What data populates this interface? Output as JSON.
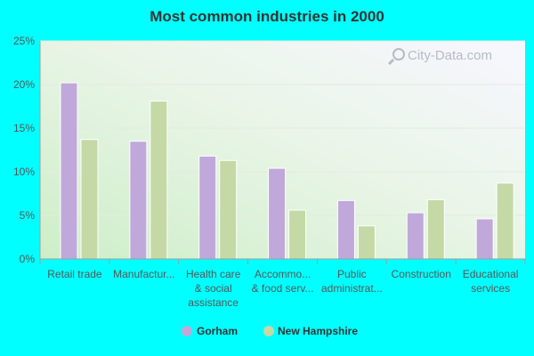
{
  "chart_data": {
    "type": "bar",
    "title": "Most common industries in 2000",
    "categories": [
      [
        "Retail trade"
      ],
      [
        "Manufactur..."
      ],
      [
        "Health care",
        "& social",
        "assistance"
      ],
      [
        "Accommo...",
        "& food serv..."
      ],
      [
        "Public",
        "administrat..."
      ],
      [
        "Construction"
      ],
      [
        "Educational",
        "services"
      ]
    ],
    "series": [
      {
        "name": "Gorham",
        "color": "#c0a8db",
        "values": [
          20.2,
          13.5,
          11.8,
          10.4,
          6.7,
          5.3,
          4.6
        ]
      },
      {
        "name": "New Hampshire",
        "color": "#c4d9a5",
        "values": [
          13.7,
          18.1,
          11.3,
          5.6,
          3.8,
          6.8,
          8.7
        ]
      }
    ],
    "y_ticks": [
      "0%",
      "5%",
      "10%",
      "15%",
      "20%",
      "25%"
    ],
    "ylim": [
      0,
      25
    ],
    "grid": true,
    "legend_position": "bottom-center"
  },
  "watermark": {
    "text": "City-Data.com",
    "icon": "magnifier-icon"
  }
}
